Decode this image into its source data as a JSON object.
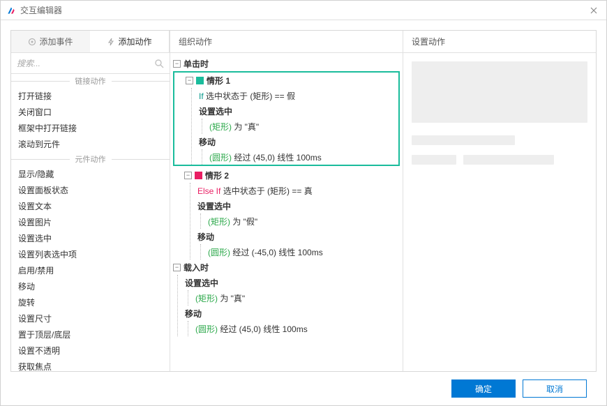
{
  "window": {
    "title": "交互编辑器"
  },
  "tabs": {
    "add_event": "添加事件",
    "add_action": "添加动作"
  },
  "search": {
    "placeholder": "搜索..."
  },
  "left": {
    "section_link": "链接动作",
    "section_widget": "元件动作",
    "link_actions": [
      "打开链接",
      "关闭窗口",
      "框架中打开链接",
      "滚动到元件"
    ],
    "widget_actions": [
      "显示/隐藏",
      "设置面板状态",
      "设置文本",
      "设置图片",
      "设置选中",
      "设置列表选中项",
      "启用/禁用",
      "移动",
      "旋转",
      "设置尺寸",
      "置于顶层/底层",
      "设置不透明",
      "获取焦点"
    ]
  },
  "mid": {
    "header": "组织动作",
    "events": {
      "click": "单击时",
      "load": "载入时"
    },
    "case1": {
      "title": "情形 1",
      "if": "If",
      "cond": "选中状态于 (矩形) == 假",
      "a1_name": "设置选中",
      "a1_target": "(矩形)",
      "a1_rest": " 为 \"真\"",
      "a2_name": "移动",
      "a2_target": "(圆形)",
      "a2_rest": " 经过 (45,0) 线性 100ms"
    },
    "case2": {
      "title": "情形 2",
      "elseif": "Else If",
      "cond": "选中状态于 (矩形) == 真",
      "a1_name": "设置选中",
      "a1_target": "(矩形)",
      "a1_rest": " 为 \"假\"",
      "a2_name": "移动",
      "a2_target": "(圆形)",
      "a2_rest": " 经过 (-45,0) 线性 100ms"
    },
    "load": {
      "a1_name": "设置选中",
      "a1_target": "(矩形)",
      "a1_rest": " 为 \"真\"",
      "a2_name": "移动",
      "a2_target": "(圆形)",
      "a2_rest": " 经过 (45,0) 线性 100ms"
    }
  },
  "right": {
    "header": "设置动作"
  },
  "footer": {
    "ok": "确定",
    "cancel": "取消"
  },
  "colors": {
    "accent": "#0078d4",
    "teal": "#1abc9c",
    "magenta": "#e91e63",
    "target_green": "#2ba84a"
  }
}
